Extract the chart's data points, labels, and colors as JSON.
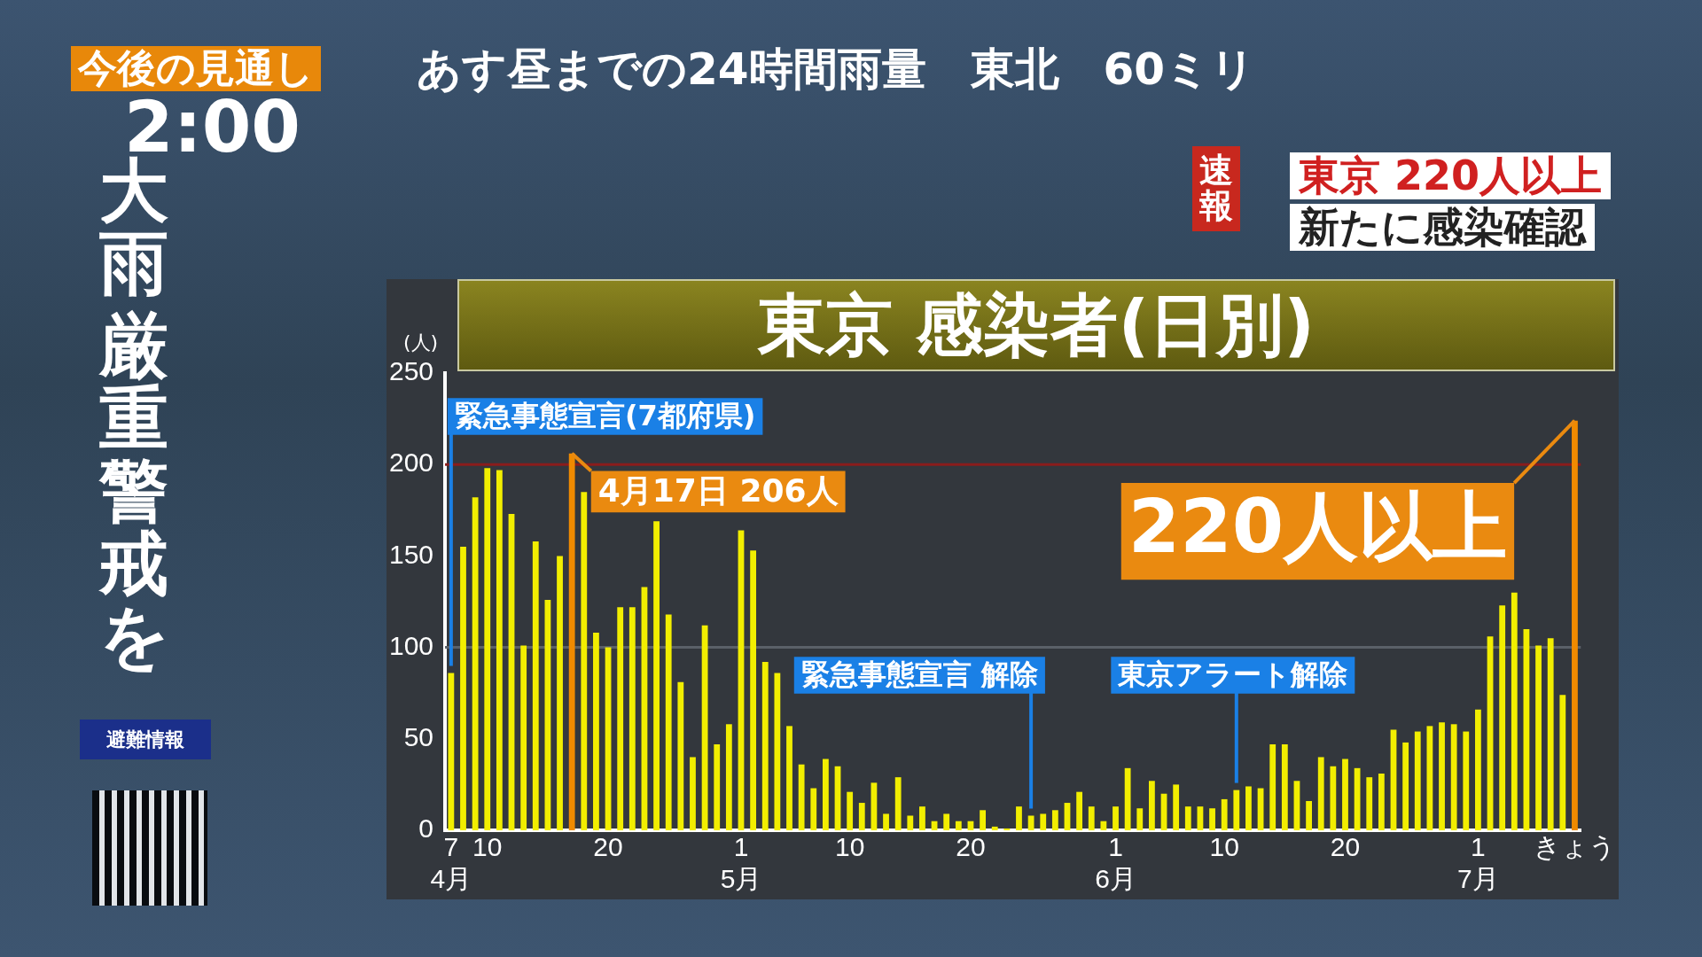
{
  "chart_data": {
    "type": "bar",
    "title": "東京 感染者(日別)",
    "ylabel": "(人)",
    "x": [
      "--04-07",
      "--04-08",
      "--04-09",
      "--04-10",
      "--04-11",
      "--04-12",
      "--04-13",
      "--04-14",
      "--04-15",
      "--04-16",
      "--04-17",
      "--04-18",
      "--04-19",
      "--04-20",
      "--04-21",
      "--04-22",
      "--04-23",
      "--04-24",
      "--04-25",
      "--04-26",
      "--04-27",
      "--04-28",
      "--04-29",
      "--04-30",
      "--05-01",
      "--05-02",
      "--05-03",
      "--05-04",
      "--05-05",
      "--05-06",
      "--05-07",
      "--05-08",
      "--05-09",
      "--05-10",
      "--05-11",
      "--05-12",
      "--05-13",
      "--05-14",
      "--05-15",
      "--05-16",
      "--05-17",
      "--05-18",
      "--05-19",
      "--05-20",
      "--05-21",
      "--05-22",
      "--05-23",
      "--05-24",
      "--05-25",
      "--05-26",
      "--05-27",
      "--05-28",
      "--05-29",
      "--05-30",
      "--05-31",
      "--06-01",
      "--06-02",
      "--06-03",
      "--06-04",
      "--06-05",
      "--06-06",
      "--06-07",
      "--06-08",
      "--06-09",
      "--06-10",
      "--06-11",
      "--06-12",
      "--06-13",
      "--06-14",
      "--06-15",
      "--06-16",
      "--06-17",
      "--06-18",
      "--06-19",
      "--06-20",
      "--06-21",
      "--06-22",
      "--06-23",
      "--06-24",
      "--06-25",
      "--06-26",
      "--06-27",
      "--06-28",
      "--06-29",
      "--06-30",
      "--07-01",
      "--07-02",
      "--07-03",
      "--07-04",
      "--07-05",
      "--07-06",
      "--07-07",
      "--07-08",
      "--07-09"
    ],
    "values": [
      86,
      155,
      182,
      198,
      197,
      173,
      101,
      158,
      126,
      150,
      206,
      185,
      108,
      100,
      122,
      122,
      133,
      169,
      118,
      81,
      40,
      112,
      47,
      58,
      164,
      153,
      92,
      86,
      57,
      36,
      23,
      39,
      35,
      21,
      15,
      26,
      9,
      29,
      8,
      13,
      5,
      9,
      5,
      5,
      11,
      2,
      1,
      13,
      8,
      9,
      11,
      15,
      21,
      13,
      5,
      13,
      34,
      12,
      27,
      20,
      25,
      13,
      13,
      12,
      17,
      22,
      24,
      23,
      47,
      47,
      27,
      16,
      40,
      35,
      39,
      34,
      29,
      31,
      55,
      48,
      54,
      57,
      59,
      58,
      54,
      66,
      106,
      123,
      130,
      110,
      101,
      105,
      74,
      224
    ],
    "colors": [
      "#f2ee00",
      "#f2ee00",
      "#f2ee00",
      "#f2ee00",
      "#f2ee00",
      "#f2ee00",
      "#f2ee00",
      "#f2ee00",
      "#f2ee00",
      "#f2ee00",
      "#f08a00",
      "#f2ee00",
      "#f2ee00",
      "#f2ee00",
      "#f2ee00",
      "#f2ee00",
      "#f2ee00",
      "#f2ee00",
      "#f2ee00",
      "#f2ee00",
      "#f2ee00",
      "#f2ee00",
      "#f2ee00",
      "#f2ee00",
      "#f2ee00",
      "#f2ee00",
      "#f2ee00",
      "#f2ee00",
      "#f2ee00",
      "#f2ee00",
      "#f2ee00",
      "#f2ee00",
      "#f2ee00",
      "#f2ee00",
      "#f2ee00",
      "#f2ee00",
      "#f2ee00",
      "#f2ee00",
      "#f2ee00",
      "#f2ee00",
      "#f2ee00",
      "#f2ee00",
      "#f2ee00",
      "#f2ee00",
      "#f2ee00",
      "#f2ee00",
      "#f2ee00",
      "#f2ee00",
      "#f2ee00",
      "#f2ee00",
      "#f2ee00",
      "#f2ee00",
      "#f2ee00",
      "#f2ee00",
      "#f2ee00",
      "#f2ee00",
      "#f2ee00",
      "#f2ee00",
      "#f2ee00",
      "#f2ee00",
      "#f2ee00",
      "#f2ee00",
      "#f2ee00",
      "#f2ee00",
      "#f2ee00",
      "#f2ee00",
      "#f2ee00",
      "#f2ee00",
      "#f2ee00",
      "#f2ee00",
      "#f2ee00",
      "#f2ee00",
      "#f2ee00",
      "#f2ee00",
      "#f2ee00",
      "#f2ee00",
      "#f2ee00",
      "#f2ee00",
      "#f2ee00",
      "#f2ee00",
      "#f2ee00",
      "#f2ee00",
      "#f2ee00",
      "#f2ee00",
      "#f2ee00",
      "#f2ee00",
      "#f2ee00",
      "#f2ee00",
      "#f2ee00",
      "#f2ee00",
      "#f2ee00",
      "#f2ee00",
      "#f2ee00",
      "#f08a00"
    ],
    "xlim": [
      "--04-06T12:00",
      "--07-09T12:00"
    ],
    "xticks": [
      {
        "value": "--04-07",
        "label": "7\n4月"
      },
      {
        "value": "--04-10",
        "label": "10"
      },
      {
        "value": "--04-20",
        "label": "20"
      },
      {
        "value": "--05-01",
        "label": "1\n5月"
      },
      {
        "value": "--05-10",
        "label": "10"
      },
      {
        "value": "--05-20",
        "label": "20"
      },
      {
        "value": "--06-01",
        "label": "1\n6月"
      },
      {
        "value": "--06-10",
        "label": "10"
      },
      {
        "value": "--06-20",
        "label": "20"
      },
      {
        "value": "--07-01",
        "label": "1\n7月"
      },
      {
        "value": "--07-09",
        "label": "きょう"
      }
    ],
    "ylim": [
      0,
      250
    ],
    "yticks": [
      0,
      50,
      100,
      150,
      200,
      250
    ],
    "ref_lines": [
      {
        "axis": "y",
        "value": 200,
        "color": "#8a1c1c"
      },
      {
        "axis": "y",
        "value": 100,
        "color": "#5a6068"
      },
      {
        "axis": "x",
        "value": "--04-07",
        "label": "緊急事態宣言(7都府県)",
        "color": "#1a80e6"
      },
      {
        "axis": "x",
        "value": "--05-25",
        "label": "緊急事態宣言 解除",
        "color": "#1a80e6"
      },
      {
        "axis": "x",
        "value": "--06-11",
        "label": "東京アラート解除",
        "color": "#1a80e6"
      }
    ],
    "annotations": [
      {
        "text": "4月17日 206人",
        "x": "--04-17",
        "y": 206
      },
      {
        "text": "220人以上",
        "x": "--07-09",
        "y": 224
      },
      "今後の見通し",
      "あす昼までの24時間雨量　東北　60ミリ",
      "2:00",
      "大雨",
      "厳重警戒を",
      "速報",
      "東京 220人以上",
      "新たに感染確認",
      "避難情報"
    ]
  }
}
